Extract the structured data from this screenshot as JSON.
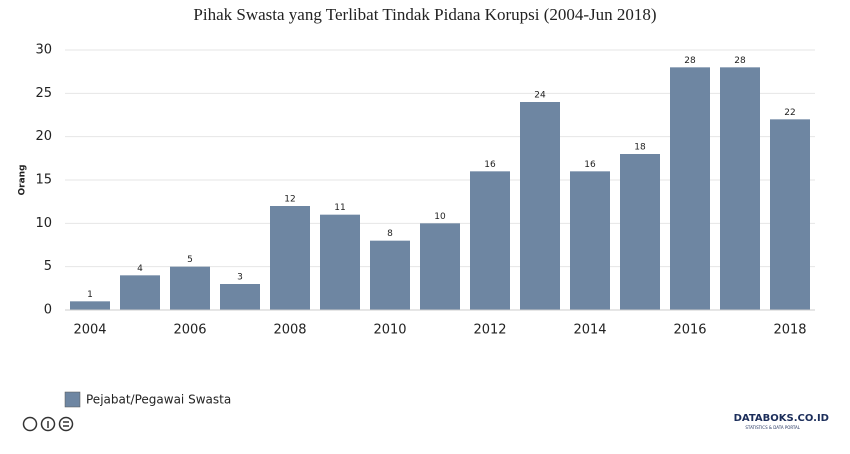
{
  "chart_data": {
    "type": "bar",
    "title": "Pihak Swasta yang Terlibat Tindak Pidana Korupsi (2004-Jun 2018)",
    "y_label": "Orang",
    "categories": [
      "2004",
      null,
      "2006",
      null,
      "2008",
      null,
      "2010",
      null,
      "2012",
      null,
      "2014",
      null,
      "2016",
      null,
      "2018"
    ],
    "series": [
      {
        "name": "Pejabat/Pegawai Swasta",
        "color": "#6e86a2",
        "values": [
          1,
          4,
          5,
          3,
          12,
          11,
          8,
          10,
          16,
          24,
          16,
          18,
          28,
          28,
          22
        ]
      }
    ],
    "ylim": [
      0,
      30
    ],
    "yticks": [
      0,
      5,
      10,
      15,
      20,
      25,
      30
    ],
    "grid": true,
    "legend": "bottom-left"
  },
  "footer": {
    "brand": "DATABOKS.CO.ID",
    "tagline": "STATISTICS & DATA PORTAL"
  }
}
